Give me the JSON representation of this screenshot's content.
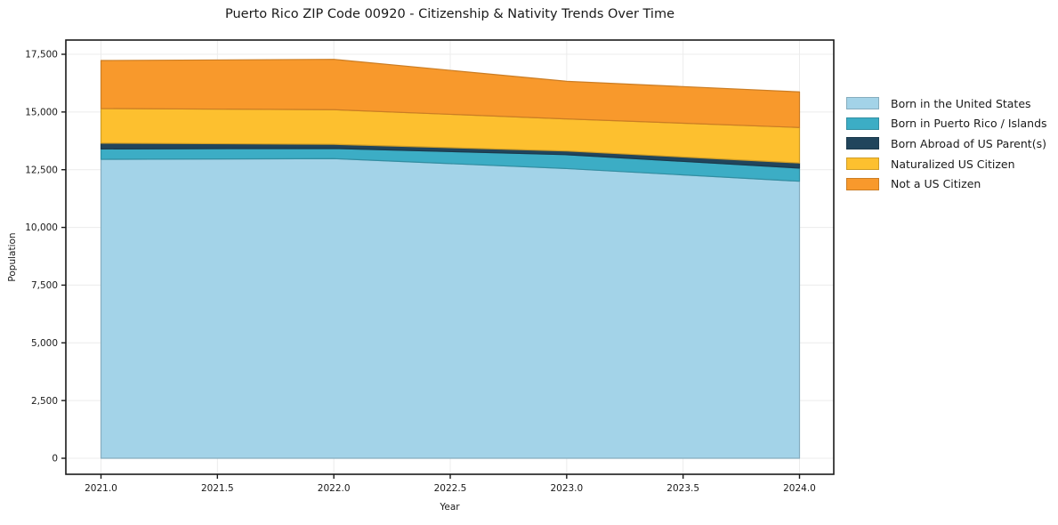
{
  "figure": {
    "title": "Puerto Rico ZIP Code 00920 - Citizenship & Nativity Trends Over Time",
    "xlabel": "Year",
    "ylabel": "Population"
  },
  "colors": {
    "spine": "#1a1a1a",
    "grid": "#ececec",
    "tick_text": "#1a1a1a",
    "background": "#ffffff"
  },
  "chart_data": {
    "type": "area",
    "stacked": true,
    "title": "Puerto Rico ZIP Code 00920 - Citizenship & Nativity Trends Over Time",
    "xlabel": "Year",
    "ylabel": "Population",
    "grid": true,
    "legend_position": "right-outside",
    "x": [
      2021,
      2022,
      2023,
      2024
    ],
    "xlim": [
      2021,
      2024
    ],
    "ylim": [
      0,
      17500
    ],
    "x_tick_values": [
      2021.0,
      2021.5,
      2022.0,
      2022.5,
      2023.0,
      2023.5,
      2024.0
    ],
    "x_tick_labels": [
      "2021.0",
      "2021.5",
      "2022.0",
      "2022.5",
      "2023.0",
      "2023.5",
      "2024.0"
    ],
    "y_tick_values": [
      0,
      2500,
      5000,
      7500,
      10000,
      12500,
      15000,
      17500
    ],
    "y_tick_labels": [
      "0",
      "2,500",
      "5,000",
      "7,500",
      "10,000",
      "12,500",
      "15,000",
      "17,500"
    ],
    "series": [
      {
        "name": "Born in the United States",
        "color": "#a3d3e8",
        "values": [
          12950,
          12980,
          12550,
          12000
        ]
      },
      {
        "name": "Born in Puerto Rico / Islands",
        "color": "#3cadc5",
        "values": [
          450,
          440,
          600,
          570
        ]
      },
      {
        "name": "Born Abroad of US Parent(s)",
        "color": "#21455c",
        "values": [
          250,
          180,
          160,
          220
        ]
      },
      {
        "name": "Naturalized US Citizen",
        "color": "#fdc02f",
        "values": [
          1500,
          1500,
          1390,
          1540
        ]
      },
      {
        "name": "Not a US Citizen",
        "color": "#f8992c",
        "values": [
          2080,
          2180,
          1630,
          1540
        ]
      }
    ],
    "stacked_totals": [
      17230,
      17280,
      16330,
      15870
    ]
  }
}
